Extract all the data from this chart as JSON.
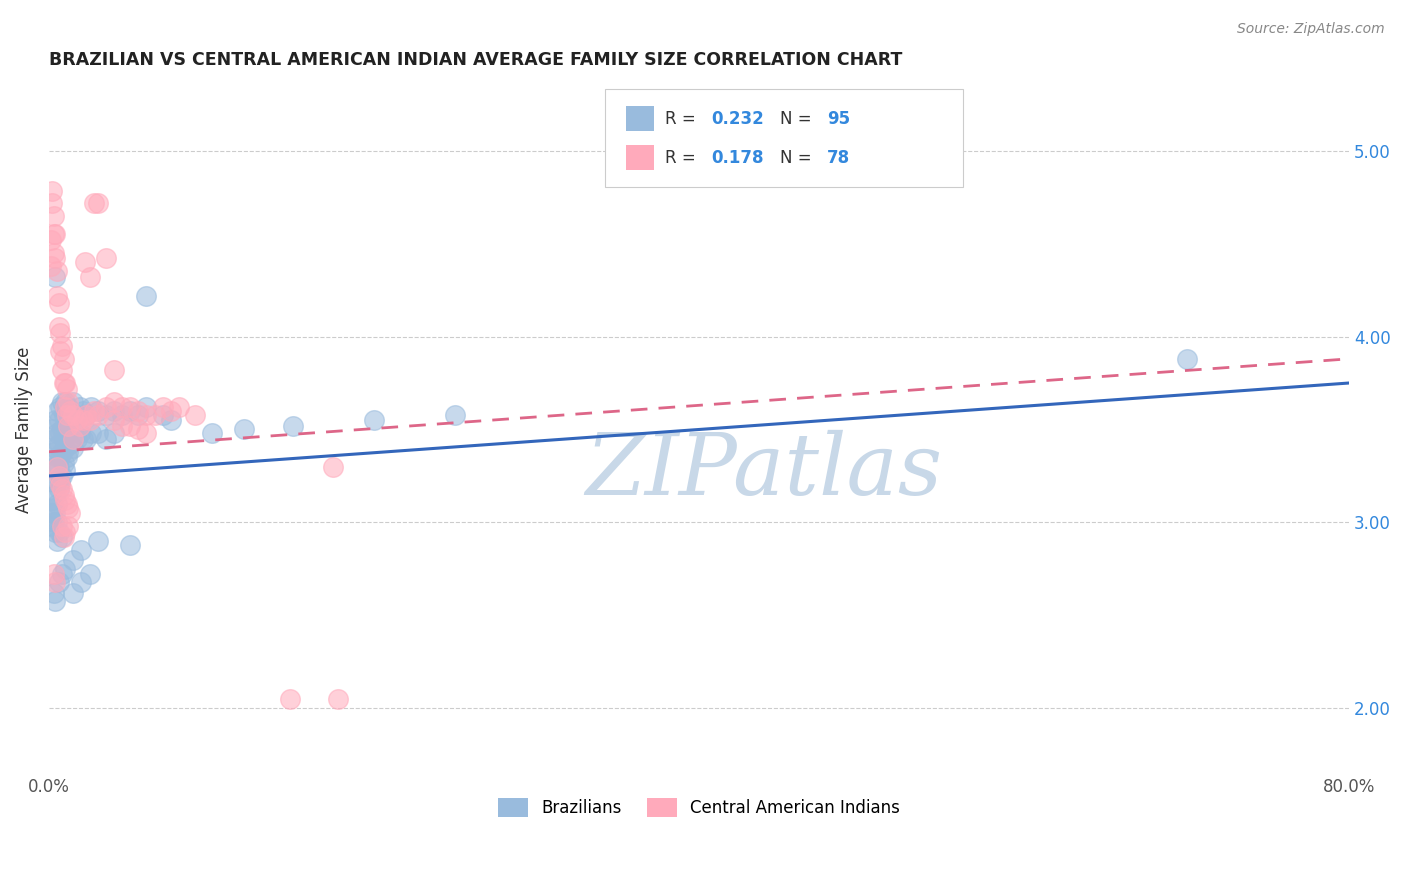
{
  "title": "BRAZILIAN VS CENTRAL AMERICAN INDIAN AVERAGE FAMILY SIZE CORRELATION CHART",
  "source": "Source: ZipAtlas.com",
  "ylabel": "Average Family Size",
  "yticks_right": [
    2.0,
    3.0,
    4.0,
    5.0
  ],
  "xlim": [
    0.0,
    0.8
  ],
  "ylim": [
    1.65,
    5.35
  ],
  "blue_color": "#99bbdd",
  "pink_color": "#ffaabb",
  "blue_line_color": "#3366bb",
  "pink_line_color": "#dd6688",
  "legend_text_color": "#333333",
  "legend_RN_color": "#3388dd",
  "watermark_text": "ZIPatlas",
  "watermark_color": "#c8d8e8",
  "grid_color": "#cccccc",
  "background_color": "#ffffff",
  "blue_line_x0": 0.0,
  "blue_line_x1": 0.8,
  "blue_line_y0": 3.25,
  "blue_line_y1": 3.75,
  "pink_line_x0": 0.0,
  "pink_line_x1": 0.8,
  "pink_line_y0": 3.38,
  "pink_line_y1": 3.88,
  "blue_scatter": [
    [
      0.002,
      3.5
    ],
    [
      0.003,
      3.45
    ],
    [
      0.003,
      3.38
    ],
    [
      0.003,
      3.3
    ],
    [
      0.003,
      3.22
    ],
    [
      0.004,
      3.55
    ],
    [
      0.004,
      3.4
    ],
    [
      0.004,
      3.28
    ],
    [
      0.004,
      3.15
    ],
    [
      0.005,
      3.6
    ],
    [
      0.005,
      3.48
    ],
    [
      0.005,
      3.35
    ],
    [
      0.005,
      3.22
    ],
    [
      0.005,
      3.1
    ],
    [
      0.006,
      3.55
    ],
    [
      0.006,
      3.42
    ],
    [
      0.006,
      3.3
    ],
    [
      0.006,
      3.18
    ],
    [
      0.007,
      3.62
    ],
    [
      0.007,
      3.48
    ],
    [
      0.007,
      3.35
    ],
    [
      0.007,
      3.22
    ],
    [
      0.008,
      3.65
    ],
    [
      0.008,
      3.5
    ],
    [
      0.008,
      3.38
    ],
    [
      0.008,
      3.25
    ],
    [
      0.009,
      3.58
    ],
    [
      0.009,
      3.45
    ],
    [
      0.009,
      3.32
    ],
    [
      0.01,
      3.65
    ],
    [
      0.01,
      3.52
    ],
    [
      0.01,
      3.4
    ],
    [
      0.01,
      3.28
    ],
    [
      0.011,
      3.6
    ],
    [
      0.011,
      3.48
    ],
    [
      0.011,
      3.35
    ],
    [
      0.012,
      3.62
    ],
    [
      0.012,
      3.5
    ],
    [
      0.012,
      3.38
    ],
    [
      0.013,
      3.55
    ],
    [
      0.013,
      3.42
    ],
    [
      0.015,
      3.65
    ],
    [
      0.015,
      3.52
    ],
    [
      0.015,
      3.4
    ],
    [
      0.017,
      3.58
    ],
    [
      0.017,
      3.45
    ],
    [
      0.019,
      3.62
    ],
    [
      0.019,
      3.48
    ],
    [
      0.021,
      3.6
    ],
    [
      0.021,
      3.45
    ],
    [
      0.023,
      3.58
    ],
    [
      0.023,
      3.45
    ],
    [
      0.026,
      3.62
    ],
    [
      0.026,
      3.48
    ],
    [
      0.03,
      3.6
    ],
    [
      0.03,
      3.48
    ],
    [
      0.035,
      3.58
    ],
    [
      0.035,
      3.45
    ],
    [
      0.04,
      3.6
    ],
    [
      0.04,
      3.48
    ],
    [
      0.045,
      3.58
    ],
    [
      0.05,
      3.6
    ],
    [
      0.055,
      3.58
    ],
    [
      0.06,
      3.62
    ],
    [
      0.07,
      3.58
    ],
    [
      0.075,
      3.55
    ],
    [
      0.003,
      2.62
    ],
    [
      0.004,
      2.58
    ],
    [
      0.006,
      2.68
    ],
    [
      0.008,
      2.72
    ],
    [
      0.01,
      2.75
    ],
    [
      0.015,
      2.8
    ],
    [
      0.02,
      2.85
    ],
    [
      0.03,
      2.9
    ],
    [
      0.05,
      2.88
    ],
    [
      0.004,
      4.32
    ],
    [
      0.06,
      4.22
    ],
    [
      0.7,
      3.88
    ],
    [
      0.002,
      3.12
    ],
    [
      0.002,
      3.05
    ],
    [
      0.002,
      2.98
    ],
    [
      0.003,
      3.08
    ],
    [
      0.003,
      3.0
    ],
    [
      0.004,
      3.05
    ],
    [
      0.004,
      2.95
    ],
    [
      0.005,
      3.0
    ],
    [
      0.005,
      2.9
    ],
    [
      0.006,
      2.95
    ],
    [
      0.008,
      2.92
    ],
    [
      0.1,
      3.48
    ],
    [
      0.12,
      3.5
    ],
    [
      0.15,
      3.52
    ],
    [
      0.2,
      3.55
    ],
    [
      0.25,
      3.58
    ],
    [
      0.015,
      2.62
    ],
    [
      0.02,
      2.68
    ],
    [
      0.025,
      2.72
    ]
  ],
  "pink_scatter": [
    [
      0.002,
      4.78
    ],
    [
      0.002,
      4.72
    ],
    [
      0.003,
      4.65
    ],
    [
      0.003,
      4.55
    ],
    [
      0.003,
      4.45
    ],
    [
      0.004,
      4.55
    ],
    [
      0.004,
      4.42
    ],
    [
      0.005,
      4.35
    ],
    [
      0.005,
      4.22
    ],
    [
      0.006,
      4.18
    ],
    [
      0.006,
      4.05
    ],
    [
      0.007,
      4.02
    ],
    [
      0.007,
      3.92
    ],
    [
      0.008,
      3.95
    ],
    [
      0.008,
      3.82
    ],
    [
      0.009,
      3.88
    ],
    [
      0.009,
      3.75
    ],
    [
      0.01,
      3.75
    ],
    [
      0.01,
      3.62
    ],
    [
      0.011,
      3.72
    ],
    [
      0.011,
      3.58
    ],
    [
      0.012,
      3.65
    ],
    [
      0.012,
      3.52
    ],
    [
      0.013,
      3.6
    ],
    [
      0.015,
      3.58
    ],
    [
      0.015,
      3.45
    ],
    [
      0.017,
      3.55
    ],
    [
      0.019,
      3.52
    ],
    [
      0.021,
      3.55
    ],
    [
      0.023,
      3.58
    ],
    [
      0.025,
      3.55
    ],
    [
      0.028,
      3.6
    ],
    [
      0.03,
      3.58
    ],
    [
      0.035,
      3.62
    ],
    [
      0.04,
      3.65
    ],
    [
      0.04,
      3.55
    ],
    [
      0.045,
      3.62
    ],
    [
      0.045,
      3.52
    ],
    [
      0.05,
      3.62
    ],
    [
      0.05,
      3.52
    ],
    [
      0.055,
      3.6
    ],
    [
      0.055,
      3.5
    ],
    [
      0.06,
      3.58
    ],
    [
      0.06,
      3.48
    ],
    [
      0.065,
      3.58
    ],
    [
      0.07,
      3.62
    ],
    [
      0.075,
      3.6
    ],
    [
      0.08,
      3.62
    ],
    [
      0.09,
      3.58
    ],
    [
      0.003,
      2.72
    ],
    [
      0.004,
      2.68
    ],
    [
      0.008,
      2.98
    ],
    [
      0.009,
      2.92
    ],
    [
      0.01,
      2.95
    ],
    [
      0.012,
      2.98
    ],
    [
      0.022,
      4.4
    ],
    [
      0.025,
      4.32
    ],
    [
      0.028,
      4.72
    ],
    [
      0.03,
      4.72
    ],
    [
      0.035,
      4.42
    ],
    [
      0.04,
      3.82
    ],
    [
      0.148,
      2.05
    ],
    [
      0.178,
      2.05
    ],
    [
      0.001,
      4.52
    ],
    [
      0.001,
      4.38
    ],
    [
      0.175,
      3.3
    ],
    [
      0.005,
      3.3
    ],
    [
      0.006,
      3.25
    ],
    [
      0.007,
      3.2
    ],
    [
      0.008,
      3.18
    ],
    [
      0.009,
      3.15
    ],
    [
      0.01,
      3.12
    ],
    [
      0.011,
      3.1
    ],
    [
      0.012,
      3.08
    ],
    [
      0.013,
      3.05
    ]
  ]
}
